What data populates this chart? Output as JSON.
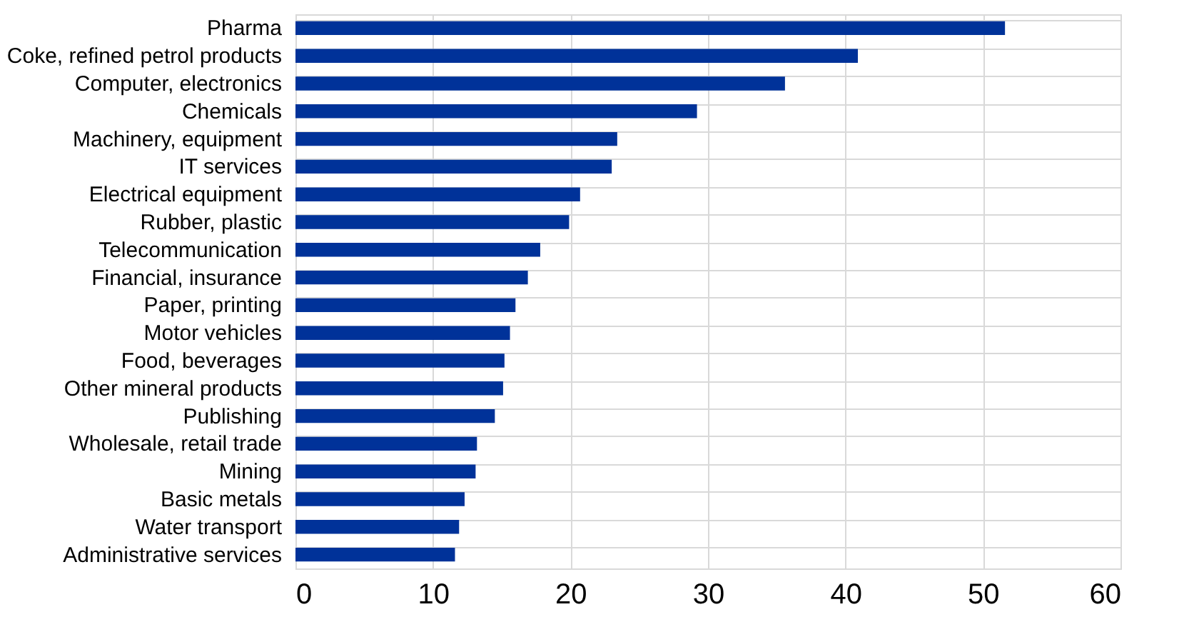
{
  "chart_data": {
    "type": "bar",
    "orientation": "horizontal",
    "categories": [
      "Pharma",
      "Coke, refined petrol products",
      "Computer, electronics",
      "Chemicals",
      "Machinery, equipment",
      "IT services",
      "Electrical equipment",
      "Rubber, plastic",
      "Telecommunication",
      "Financial, insurance",
      "Paper, printing",
      "Motor vehicles",
      "Food, beverages",
      "Other mineral products",
      "Publishing",
      "Wholesale, retail trade",
      "Mining",
      "Basic metals",
      "Water transport",
      "Administrative services"
    ],
    "values": [
      51.6,
      40.9,
      35.6,
      29.2,
      23.4,
      23.0,
      20.7,
      19.9,
      17.8,
      16.9,
      16.0,
      15.6,
      15.2,
      15.1,
      14.5,
      13.2,
      13.1,
      12.3,
      11.9,
      11.6
    ],
    "color": "#003299",
    "xlim": [
      0,
      60
    ],
    "xticks": [
      0,
      10,
      20,
      30,
      40,
      50,
      60
    ],
    "grid": true
  }
}
